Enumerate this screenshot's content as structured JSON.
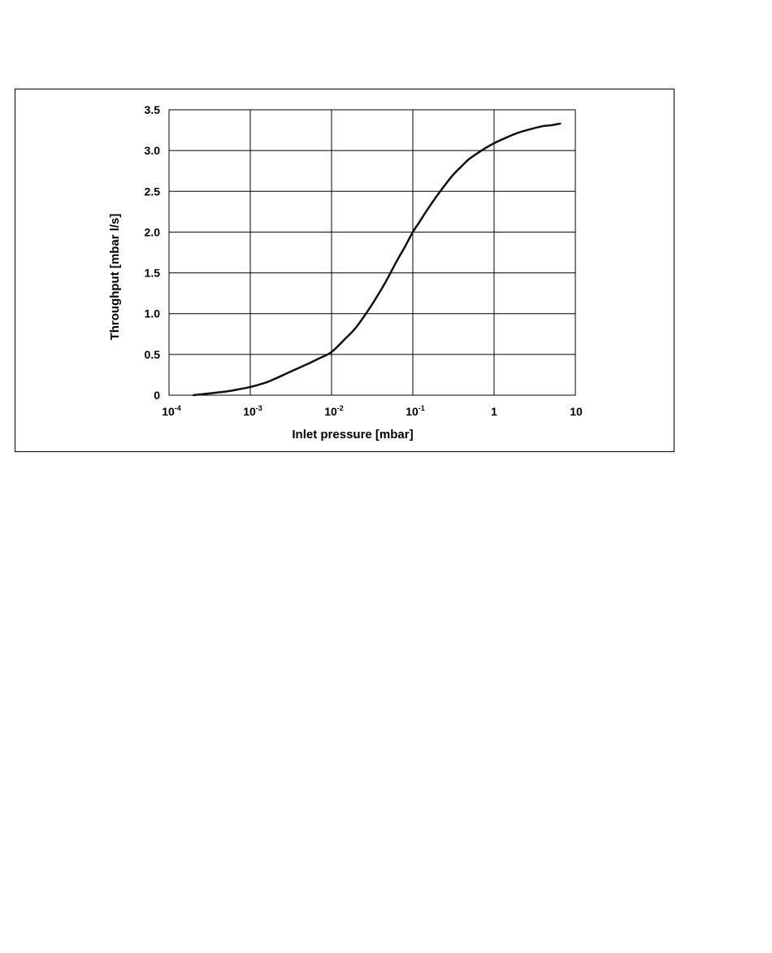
{
  "chart_data": {
    "type": "line",
    "title": "",
    "xlabel": "Inlet pressure [mbar]",
    "ylabel": "Throughput [mbar l/s]",
    "x_scale": "log",
    "xlim": [
      0.0001,
      10
    ],
    "ylim": [
      0,
      3.5
    ],
    "grid": true,
    "x_ticks": [
      {
        "value": 0.0001,
        "base": "10",
        "exp": "-4"
      },
      {
        "value": 0.001,
        "base": "10",
        "exp": "-3"
      },
      {
        "value": 0.01,
        "base": "10",
        "exp": "-2"
      },
      {
        "value": 0.1,
        "base": "10",
        "exp": "-1"
      },
      {
        "value": 1,
        "base": "1",
        "exp": ""
      },
      {
        "value": 10,
        "base": "10",
        "exp": ""
      }
    ],
    "y_ticks": [
      {
        "value": 0,
        "label": "0"
      },
      {
        "value": 0.5,
        "label": "0.5"
      },
      {
        "value": 1.0,
        "label": "1.0"
      },
      {
        "value": 1.5,
        "label": "1.5"
      },
      {
        "value": 2.0,
        "label": "2.0"
      },
      {
        "value": 2.5,
        "label": "2.5"
      },
      {
        "value": 3.0,
        "label": "3.0"
      },
      {
        "value": 3.5,
        "label": "3.5"
      }
    ],
    "series": [
      {
        "color": "#111111",
        "x": [
          0.0002,
          0.0003,
          0.0005,
          0.0007,
          0.001,
          0.0015,
          0.002,
          0.003,
          0.005,
          0.007,
          0.01,
          0.015,
          0.02,
          0.03,
          0.04,
          0.05,
          0.06,
          0.07,
          0.08,
          0.1,
          0.12,
          0.15,
          0.2,
          0.3,
          0.4,
          0.5,
          0.7,
          1,
          1.5,
          2,
          3,
          4,
          5,
          6.5
        ],
        "y": [
          0.0,
          0.02,
          0.045,
          0.07,
          0.1,
          0.15,
          0.2,
          0.28,
          0.38,
          0.45,
          0.53,
          0.7,
          0.83,
          1.08,
          1.28,
          1.45,
          1.6,
          1.72,
          1.82,
          2.0,
          2.12,
          2.27,
          2.45,
          2.68,
          2.81,
          2.9,
          3.0,
          3.09,
          3.17,
          3.22,
          3.27,
          3.3,
          3.31,
          3.33
        ]
      }
    ]
  }
}
